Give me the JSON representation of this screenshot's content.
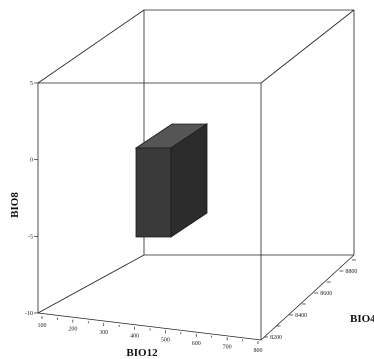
{
  "figure": {
    "axes": {
      "x": {
        "label": "BIO12",
        "ticks": [
          "100",
          "200",
          "300",
          "400",
          "500",
          "600",
          "700",
          "800"
        ]
      },
      "y": {
        "label": "BIO4",
        "ticks": [
          "8200",
          "8300",
          "8400",
          "8500",
          "8600",
          "8700",
          "8800",
          "8900"
        ]
      },
      "z": {
        "label": "BIO8",
        "ticks": [
          "-10",
          "-5",
          "0",
          "5"
        ]
      }
    },
    "colors": {
      "box_front": "#3a3a3a",
      "box_side": "#2c2c2c",
      "box_top": "#555555",
      "frame": "#222222"
    }
  }
}
